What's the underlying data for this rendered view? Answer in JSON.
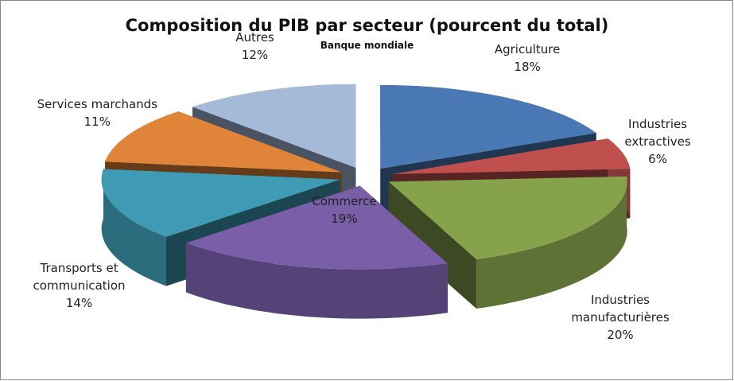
{
  "chart_data": {
    "type": "pie3d",
    "title": "Composition du PIB par secteur (pourcent du total)",
    "subtitle": "Banque mondiale",
    "categories": [
      "Agriculture",
      "Industries extractives",
      "Industries manufacturières",
      "Commerce",
      "Transports et communication",
      "Services marchands",
      "Autres"
    ],
    "values": [
      18,
      6,
      20,
      19,
      14,
      11,
      12
    ],
    "value_labels": [
      "18%",
      "6%",
      "20%",
      "19%",
      "14%",
      "11%",
      "12%"
    ],
    "colors": [
      "#4a78b5",
      "#c0504d",
      "#86a34b",
      "#7a5ea8",
      "#3f9bb3",
      "#e0843a",
      "#a5b9d9"
    ]
  }
}
